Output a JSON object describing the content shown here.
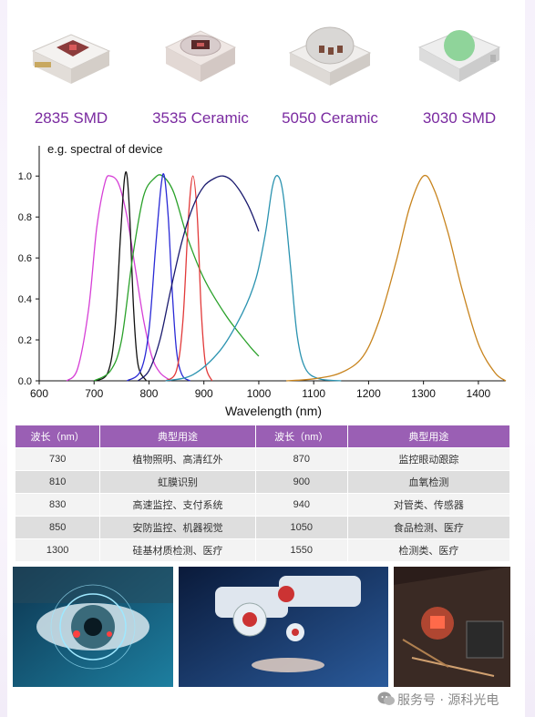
{
  "products": [
    {
      "label": "2835 SMD"
    },
    {
      "label": "3535 Ceramic"
    },
    {
      "label": "5050 Ceramic"
    },
    {
      "label": "3030 SMD"
    }
  ],
  "chart_data": {
    "type": "line",
    "title": "e.g.   spectral of device",
    "xlabel": "Wavelength (nm)",
    "ylabel": "",
    "xlim": [
      600,
      1450
    ],
    "ylim": [
      0.0,
      1.05
    ],
    "xticks": [
      "600",
      "700",
      "800",
      "900",
      "1000",
      "1100",
      "1200",
      "1300",
      "1400"
    ],
    "yticks": [
      "0.0",
      "0.2",
      "0.4",
      "0.6",
      "0.8",
      "1.0"
    ],
    "grid": false,
    "series": [
      {
        "color": "#d63fd6",
        "peak": 730,
        "points": [
          [
            650,
            0.0
          ],
          [
            670,
            0.06
          ],
          [
            690,
            0.35
          ],
          [
            705,
            0.75
          ],
          [
            720,
            0.97
          ],
          [
            730,
            1.0
          ],
          [
            745,
            0.96
          ],
          [
            760,
            0.8
          ],
          [
            775,
            0.55
          ],
          [
            790,
            0.3
          ],
          [
            805,
            0.12
          ],
          [
            820,
            0.04
          ],
          [
            840,
            0.0
          ]
        ]
      },
      {
        "color": "#111111",
        "peak": 760,
        "points": [
          [
            700,
            0.0
          ],
          [
            725,
            0.04
          ],
          [
            738,
            0.25
          ],
          [
            748,
            0.7
          ],
          [
            755,
            0.98
          ],
          [
            760,
            1.0
          ],
          [
            765,
            0.8
          ],
          [
            772,
            0.35
          ],
          [
            780,
            0.08
          ],
          [
            795,
            0.0
          ]
        ]
      },
      {
        "color": "#2aa12a",
        "peak": 825,
        "points": [
          [
            700,
            0.0
          ],
          [
            730,
            0.05
          ],
          [
            750,
            0.2
          ],
          [
            770,
            0.6
          ],
          [
            790,
            0.9
          ],
          [
            810,
            0.99
          ],
          [
            825,
            1.0
          ],
          [
            845,
            0.92
          ],
          [
            870,
            0.7
          ],
          [
            900,
            0.5
          ],
          [
            940,
            0.32
          ],
          [
            980,
            0.18
          ],
          [
            1000,
            0.12
          ]
        ]
      },
      {
        "color": "#2a2ad6",
        "peak": 828,
        "points": [
          [
            760,
            0.0
          ],
          [
            785,
            0.05
          ],
          [
            800,
            0.25
          ],
          [
            812,
            0.65
          ],
          [
            822,
            0.95
          ],
          [
            828,
            1.0
          ],
          [
            835,
            0.8
          ],
          [
            842,
            0.45
          ],
          [
            850,
            0.15
          ],
          [
            860,
            0.03
          ],
          [
            875,
            0.0
          ]
        ]
      },
      {
        "color": "#e23a3a",
        "peak": 880,
        "points": [
          [
            830,
            0.0
          ],
          [
            850,
            0.05
          ],
          [
            862,
            0.3
          ],
          [
            872,
            0.8
          ],
          [
            880,
            1.0
          ],
          [
            888,
            0.8
          ],
          [
            895,
            0.35
          ],
          [
            903,
            0.08
          ],
          [
            915,
            0.0
          ]
        ]
      },
      {
        "color": "#1a1a6e",
        "peak": 930,
        "points": [
          [
            780,
            0.0
          ],
          [
            800,
            0.05
          ],
          [
            820,
            0.2
          ],
          [
            840,
            0.45
          ],
          [
            860,
            0.68
          ],
          [
            880,
            0.85
          ],
          [
            900,
            0.95
          ],
          [
            920,
            0.99
          ],
          [
            935,
            1.0
          ],
          [
            950,
            0.98
          ],
          [
            965,
            0.93
          ],
          [
            980,
            0.86
          ],
          [
            990,
            0.8
          ],
          [
            1000,
            0.73
          ]
        ]
      },
      {
        "color": "#2b93b0",
        "peak": 1035,
        "points": [
          [
            830,
            0.0
          ],
          [
            880,
            0.03
          ],
          [
            930,
            0.15
          ],
          [
            970,
            0.33
          ],
          [
            995,
            0.5
          ],
          [
            1012,
            0.72
          ],
          [
            1025,
            0.95
          ],
          [
            1035,
            1.0
          ],
          [
            1045,
            0.9
          ],
          [
            1058,
            0.55
          ],
          [
            1070,
            0.22
          ],
          [
            1085,
            0.06
          ],
          [
            1110,
            0.01
          ],
          [
            1150,
            0.0
          ]
        ]
      },
      {
        "color": "#c8841e",
        "peak": 1300,
        "points": [
          [
            1050,
            0.0
          ],
          [
            1100,
            0.01
          ],
          [
            1150,
            0.04
          ],
          [
            1190,
            0.12
          ],
          [
            1220,
            0.3
          ],
          [
            1250,
            0.58
          ],
          [
            1275,
            0.85
          ],
          [
            1300,
            1.0
          ],
          [
            1320,
            0.93
          ],
          [
            1345,
            0.72
          ],
          [
            1370,
            0.45
          ],
          [
            1400,
            0.18
          ],
          [
            1430,
            0.04
          ],
          [
            1450,
            0.0
          ]
        ]
      }
    ]
  },
  "table": {
    "headers": [
      "波长（nm）",
      "典型用途",
      "波长（nm）",
      "典型用途"
    ],
    "rows": [
      [
        "730",
        "植物照明、高清红外",
        "870",
        "监控眼动跟踪"
      ],
      [
        "810",
        "虹膜识别",
        "900",
        "血氧检测"
      ],
      [
        "830",
        "高速监控、支付系统",
        "940",
        "对管类、传感器"
      ],
      [
        "850",
        "安防监控、机器视觉",
        "1050",
        "食品检测、医疗"
      ],
      [
        "1300",
        "硅基材质检测、医疗",
        "1550",
        "检测类、医疗"
      ]
    ]
  },
  "watermark": {
    "text": "服务号 · 源科光电",
    "icon": "wechat-icon"
  },
  "colors": {
    "accent": "#7a2aa0",
    "table_header": "#9a5fb4"
  }
}
